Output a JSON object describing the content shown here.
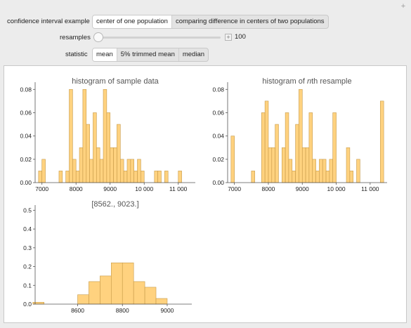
{
  "controls": {
    "interval_label": "confidence interval example",
    "interval_options": [
      {
        "label": "center of one population",
        "selected": true
      },
      {
        "label": "comparing difference in centers of two populations",
        "selected": false
      }
    ],
    "resamples_label": "resamples",
    "resamples_value": "100",
    "resamples_fraction": 0.0,
    "statistic_label": "statistic",
    "statistic_options": [
      {
        "label": "mean",
        "selected": true
      },
      {
        "label": "5% trimmed mean",
        "selected": false
      },
      {
        "label": "median",
        "selected": false
      }
    ]
  },
  "colors": {
    "bar_fill": "#ffd27f",
    "bar_stroke": "#c69a48",
    "axis": "#555555"
  },
  "chart_data": [
    {
      "type": "bar",
      "title": "histogram of sample data",
      "xlim": [
        6800,
        11500
      ],
      "ylim": [
        0,
        0.085
      ],
      "xticks": [
        7000,
        8000,
        9000,
        10000,
        11000
      ],
      "xtick_labels": [
        "7000",
        "8000",
        "9000",
        "10 000",
        "11 000"
      ],
      "yticks": [
        0,
        0.02,
        0.04,
        0.06,
        0.08
      ],
      "ytick_labels": [
        "0.00",
        "0.02",
        "0.04",
        "0.06",
        "0.08"
      ],
      "bin_start": 6900,
      "bin_width": 100,
      "values": [
        0.01,
        0.02,
        0,
        0,
        0,
        0,
        0.01,
        0,
        0.01,
        0.08,
        0.02,
        0.01,
        0.03,
        0.08,
        0.05,
        0.02,
        0.06,
        0.03,
        0.02,
        0.08,
        0.06,
        0.03,
        0.03,
        0.05,
        0.02,
        0.01,
        0.02,
        0.02,
        0.01,
        0.02,
        0.01,
        0,
        0,
        0,
        0.01,
        0.01,
        0,
        0.01,
        0,
        0,
        0,
        0.01,
        0,
        0,
        0,
        0,
        0
      ]
    },
    {
      "type": "bar",
      "title_parts": [
        "histogram of ",
        "n",
        "th resample"
      ],
      "xlim": [
        6800,
        11500
      ],
      "ylim": [
        0,
        0.085
      ],
      "xticks": [
        7000,
        8000,
        9000,
        10000,
        11000
      ],
      "xtick_labels": [
        "7000",
        "8000",
        "9000",
        "10 000",
        "11 000"
      ],
      "yticks": [
        0,
        0.02,
        0.04,
        0.06,
        0.08
      ],
      "ytick_labels": [
        "0.00",
        "0.02",
        "0.04",
        "0.06",
        "0.08"
      ],
      "bin_start": 6900,
      "bin_width": 100,
      "values": [
        0.04,
        0,
        0,
        0,
        0,
        0,
        0.01,
        0,
        0,
        0.06,
        0.07,
        0.03,
        0.03,
        0.05,
        0,
        0.03,
        0.06,
        0.02,
        0.01,
        0.05,
        0.08,
        0.03,
        0.03,
        0.06,
        0.02,
        0.01,
        0.02,
        0.02,
        0.01,
        0.02,
        0.06,
        0,
        0,
        0,
        0.03,
        0.01,
        0,
        0.02,
        0,
        0,
        0,
        0,
        0,
        0,
        0.07
      ]
    },
    {
      "type": "bar",
      "title": "[8562., 9023.]",
      "xlim": [
        8410,
        9110
      ],
      "ylim": [
        0,
        0.52
      ],
      "xticks": [
        8600,
        8800,
        9000
      ],
      "xtick_labels": [
        "8600",
        "8800",
        "9000"
      ],
      "yticks": [
        0,
        0.1,
        0.2,
        0.3,
        0.4,
        0.5
      ],
      "ytick_labels": [
        "0.0",
        "0.1",
        "0.2",
        "0.3",
        "0.4",
        "0.5"
      ],
      "bin_start": 8400,
      "bin_width": 50,
      "values": [
        0.01,
        0,
        0,
        0,
        0.05,
        0.12,
        0.15,
        0.22,
        0.22,
        0.12,
        0.09,
        0.03,
        0
      ]
    }
  ]
}
